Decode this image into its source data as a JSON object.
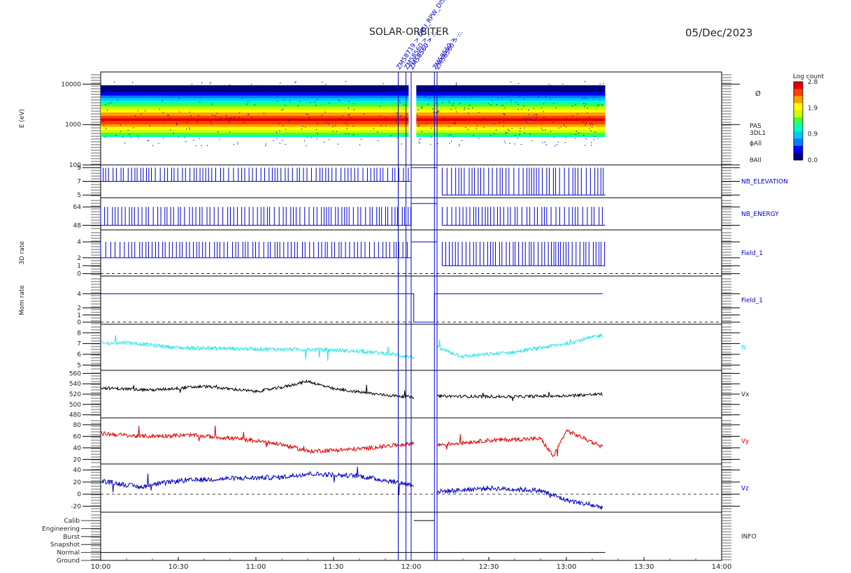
{
  "header": {
    "mission": "SOLAR-ORBITER",
    "date": "05/Dec/2023"
  },
  "colorbar": {
    "title": "Log count",
    "ticks": [
      "2.8",
      "1.9",
      "0.9",
      "0.0"
    ]
  },
  "events": [
    {
      "label": "ZM58719 > DPU_RPW_DIS",
      "x": "11:55"
    },
    {
      "label": "ZM58560 > ...",
      "x": "11:58"
    },
    {
      "label": "ZM58560 > ...",
      "x": "12:00"
    },
    {
      "label": "ZM58560 > ...",
      "x": "12:00"
    },
    {
      "label": "ZM58560 > ...",
      "x": "12:09"
    },
    {
      "label": "ZM58560 > ...",
      "x": "12:10"
    }
  ],
  "chart_data": {
    "type": "line",
    "x_range": [
      "10:00",
      "14:00"
    ],
    "x_ticks": [
      "10:00",
      "10:30",
      "11:00",
      "11:30",
      "12:00",
      "12:30",
      "13:00",
      "13:30",
      "14:00"
    ],
    "panels": [
      {
        "id": "spectrogram",
        "type": "heatmap",
        "ylabel": "E (eV)",
        "y_log": true,
        "y_range": [
          100,
          20000
        ],
        "y_ticks": [
          "10000",
          "1000",
          "100"
        ],
        "right_labels": [
          "PAS",
          "3DL1",
          "ϕAll",
          "θAll"
        ],
        "data_windows": [
          [
            "10:00",
            "11:59"
          ],
          [
            "12:02",
            "13:15"
          ]
        ],
        "peak_energy_ev": 1300
      },
      {
        "id": "nb_elevation",
        "type": "line",
        "ylabel": "",
        "y_range": [
          4.6,
          9.4
        ],
        "y_ticks": [
          "9",
          "7",
          "5"
        ],
        "right_label": "NB_ELEVATION",
        "color": "#0000cc",
        "summary": "pulses between 7 and 9 until 12:00; flat 9 from 12:00 to 12:10; pulses between 5 and 9 until 13:15"
      },
      {
        "id": "nb_energy",
        "type": "line",
        "ylabel": "",
        "y_range": [
          44,
          72
        ],
        "y_ticks": [
          "64",
          "48"
        ],
        "right_label": "NB_ENERGY",
        "color": "#0000cc",
        "summary": "pulses between 48 and 64; flat ~67 from 12:00 to 12:10"
      },
      {
        "id": "rate_3d",
        "type": "line",
        "ylabel": "3D rate",
        "y_range": [
          -0.3,
          5.5
        ],
        "y_ticks": [
          "4",
          "2",
          "1",
          "0"
        ],
        "right_label": "Field_1",
        "color": "#0000cc",
        "dashed_zero": true,
        "summary": "pulses between 2 and 4 until 12:00; flat 4 in gap; pulses 1-4 until 13:15"
      },
      {
        "id": "mom_rate",
        "type": "line",
        "ylabel": "Mom rate",
        "y_range": [
          -0.3,
          6.5
        ],
        "y_ticks": [
          "4",
          "2",
          "1",
          "0"
        ],
        "right_label": "Field_1",
        "color": "#0000cc",
        "dashed_zero": true,
        "summary": "constant 4 from 10:00 to 13:14, dropping to 0 from 12:01 to 12:09"
      },
      {
        "id": "density",
        "type": "line",
        "ylabel": "",
        "y_range": [
          4.5,
          8.8
        ],
        "y_ticks": [
          "8",
          "7",
          "6",
          "5"
        ],
        "right_label": "N",
        "color": "#22e5e5",
        "data_windows": [
          [
            "10:00",
            "12:01"
          ],
          [
            "12:10",
            "13:14"
          ]
        ],
        "anchors": [
          [
            "10:00",
            7.0
          ],
          [
            "10:10",
            7.1
          ],
          [
            "10:30",
            6.6
          ],
          [
            "11:00",
            6.5
          ],
          [
            "11:30",
            6.4
          ],
          [
            "11:50",
            6.1
          ],
          [
            "12:01",
            5.7
          ],
          [
            "12:10",
            6.6
          ],
          [
            "12:20",
            5.8
          ],
          [
            "12:40",
            6.2
          ],
          [
            "13:00",
            7.0
          ],
          [
            "13:14",
            7.8
          ]
        ]
      },
      {
        "id": "vx",
        "type": "line",
        "ylabel": "",
        "y_range": [
          474,
          566
        ],
        "y_ticks": [
          "560",
          "540",
          "520",
          "500",
          "480"
        ],
        "right_label": "Vx",
        "color": "#000000",
        "data_windows": [
          [
            "10:00",
            "12:01"
          ],
          [
            "12:10",
            "13:14"
          ]
        ],
        "anchors": [
          [
            "10:00",
            532
          ],
          [
            "10:20",
            528
          ],
          [
            "10:40",
            535
          ],
          [
            "11:00",
            525
          ],
          [
            "11:10",
            533
          ],
          [
            "11:20",
            545
          ],
          [
            "11:30",
            530
          ],
          [
            "11:50",
            518
          ],
          [
            "12:01",
            514
          ],
          [
            "12:10",
            516
          ],
          [
            "12:40",
            515
          ],
          [
            "13:00",
            517
          ],
          [
            "13:14",
            520
          ]
        ]
      },
      {
        "id": "vy",
        "type": "line",
        "ylabel": "",
        "y_range": [
          12,
          92
        ],
        "y_ticks": [
          "80",
          "60",
          "40",
          "20"
        ],
        "right_label": "Vy",
        "color": "#dd0000",
        "data_windows": [
          [
            "10:00",
            "12:01"
          ],
          [
            "12:10",
            "13:14"
          ]
        ],
        "anchors": [
          [
            "10:00",
            65
          ],
          [
            "10:15",
            60
          ],
          [
            "10:35",
            62
          ],
          [
            "10:55",
            55
          ],
          [
            "11:10",
            46
          ],
          [
            "11:20",
            34
          ],
          [
            "11:40",
            38
          ],
          [
            "12:01",
            48
          ],
          [
            "12:10",
            45
          ],
          [
            "12:30",
            53
          ],
          [
            "12:50",
            56
          ],
          [
            "12:55",
            25
          ],
          [
            "13:00",
            70
          ],
          [
            "13:14",
            42
          ]
        ]
      },
      {
        "id": "vz",
        "type": "line",
        "ylabel": "",
        "y_range": [
          -30,
          50
        ],
        "y_ticks": [
          "40",
          "20",
          "0",
          "-20"
        ],
        "right_label": "Vz",
        "color": "#0000bb",
        "dashed_zero": true,
        "data_windows": [
          [
            "10:00",
            "12:01"
          ],
          [
            "12:10",
            "13:14"
          ]
        ],
        "anchors": [
          [
            "10:00",
            22
          ],
          [
            "10:15",
            12
          ],
          [
            "10:30",
            22
          ],
          [
            "10:50",
            26
          ],
          [
            "11:10",
            28
          ],
          [
            "11:20",
            34
          ],
          [
            "11:40",
            30
          ],
          [
            "12:01",
            15
          ],
          [
            "12:10",
            4
          ],
          [
            "12:30",
            10
          ],
          [
            "12:50",
            6
          ],
          [
            "13:00",
            -10
          ],
          [
            "13:14",
            -22
          ]
        ]
      },
      {
        "id": "info",
        "type": "line",
        "ylabel": "",
        "right_label": "INFO",
        "mode_labels": [
          "Calib",
          "Engineering",
          "Burst",
          "Snapshot",
          "Normal",
          "Ground"
        ],
        "color": "#000000",
        "summary": "Normal from 10:00 to 13:15; Calib from 12:01 to 12:09"
      }
    ]
  }
}
